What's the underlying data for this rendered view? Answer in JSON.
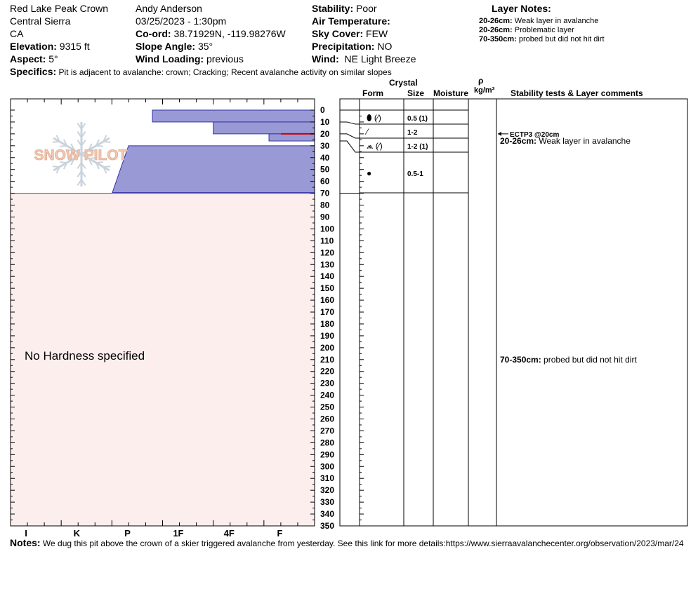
{
  "header": {
    "location": "Red Lake Peak Crown",
    "range": "Central Sierra",
    "state": "CA",
    "elevation_label": "Elevation:",
    "elevation_value": "9315 ft",
    "aspect_label": "Aspect:",
    "aspect_value": "5°",
    "observer": "Andy Anderson",
    "datetime": "03/25/2023 - 1:30pm",
    "coord_label": "Co-ord:",
    "coord_value": "38.71929N, -119.98276W",
    "slope_label": "Slope Angle:",
    "slope_value": "35°",
    "wind_loading_label": "Wind Loading:",
    "wind_loading_value": "previous",
    "stability_label": "Stability:",
    "stability_value": "Poor",
    "air_temp_label": "Air Temperature:",
    "sky_label": "Sky Cover:",
    "sky_value": "FEW",
    "precip_label": "Precipitation:",
    "precip_value": "NO",
    "wind_label": "Wind:",
    "wind_value": "NE Light Breeze",
    "specifics_label": "Specifics:",
    "specifics_value": "Pit is adjacent to avalanche: crown; Cracking; Recent avalanche activity on similar slopes"
  },
  "layer_notes": {
    "title": "Layer Notes:",
    "items": [
      {
        "range": "20-26cm:",
        "text": "Weak layer in avalanche"
      },
      {
        "range": "20-26cm:",
        "text": "Problematic layer"
      },
      {
        "range": "70-350cm:",
        "text": "probed but did not hit dirt"
      }
    ]
  },
  "table_headers": {
    "crystal": "Crystal",
    "form": "Form",
    "size": "Size",
    "moisture": "Moisture",
    "rho": "ρ",
    "density_unit": "kg/m³",
    "comments": "Stability tests & Layer comments"
  },
  "watermark": "SNOW PILOT",
  "no_hardness": "No Hardness specified",
  "notes_label": "Notes:",
  "notes_value": "We dug this pit above the crown of a skier triggered avalanche from yesterday. See this link for more details:https://www.sierraavalanchecenter.org/observation/2023/mar/24",
  "colors": {
    "layer_fill": "#9999d6",
    "layer_stroke": "#3333aa",
    "pink_fill": "#fdeeee",
    "weak_layer": "#cc0000",
    "watermark": "#c9d3dc",
    "watermark_text": "#f2c9b5"
  },
  "chart_data": {
    "type": "table",
    "depth_axis": {
      "min": 0,
      "max": 350,
      "step": 10,
      "unit": "cm"
    },
    "hardness_scale": [
      "I",
      "K",
      "P",
      "1F",
      "4F",
      "F"
    ],
    "ticks": [
      "0",
      "10",
      "20",
      "30",
      "40",
      "50",
      "60",
      "70",
      "80",
      "90",
      "100",
      "110",
      "120",
      "130",
      "140",
      "150",
      "160",
      "170",
      "180",
      "190",
      "200",
      "210",
      "220",
      "230",
      "240",
      "250",
      "260",
      "270",
      "280",
      "290",
      "300",
      "310",
      "320",
      "330",
      "340",
      "350"
    ],
    "layers": [
      {
        "top": 0,
        "bottom": 10,
        "hardness_index": 2.8,
        "form": "rounding-faceted",
        "size": "0.5 (1)"
      },
      {
        "top": 10,
        "bottom": 20,
        "hardness_index": 4.0,
        "form": "faceted",
        "size": "1-2"
      },
      {
        "top": 20,
        "bottom": 26,
        "hardness_index": 5.1,
        "form": "surface-hoar-faceted",
        "size": "1-2 (1)"
      },
      {
        "top": 26,
        "bottom": 70,
        "hardness_index": 0,
        "form": "melt-freeze",
        "size": "0.5-1"
      }
    ],
    "weak_layer_depth": 20,
    "pink_range": [
      70,
      350
    ],
    "stability_test": {
      "depth": 20,
      "label": "ECTP3 @20cm"
    },
    "layer_comments": [
      {
        "depth": 26,
        "range": "20-26cm:",
        "text": "Weak layer in avalanche"
      },
      {
        "depth": 210,
        "range": "70-350cm:",
        "text": "probed but did not hit dirt"
      }
    ]
  }
}
